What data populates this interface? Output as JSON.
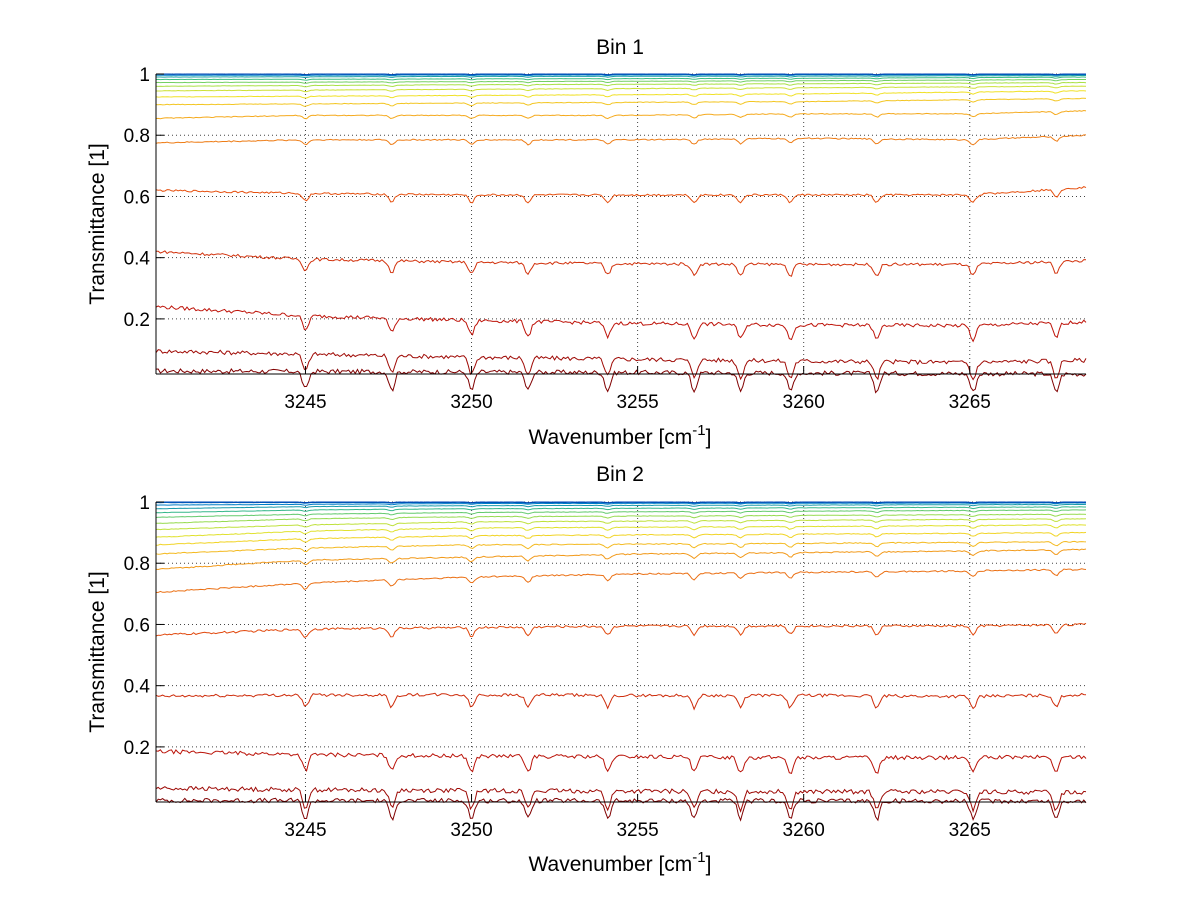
{
  "chart_data": [
    {
      "type": "line",
      "title": "Bin 1",
      "xlabel": "Wavenumber [cm",
      "xlabel_sup": "-1",
      "xlabel_end": "]",
      "ylabel": "Transmittance [1]",
      "xlim": [
        3240.5,
        3268.5
      ],
      "ylim": [
        0.02,
        1.0
      ],
      "xticks": [
        3245,
        3250,
        3255,
        3260,
        3265
      ],
      "yticks": [
        0.2,
        0.4,
        0.6,
        0.8,
        1
      ],
      "xtick_labels": [
        "3245",
        "3250",
        "3255",
        "3260",
        "3265"
      ],
      "ytick_labels": [
        "0.2",
        "0.4",
        "0.6",
        "0.8",
        "1"
      ],
      "grid": true,
      "series": [
        {
          "values": [
            [
              3240.5,
              0.03
            ],
            [
              3268.5,
              0.02
            ]
          ]
        },
        {
          "values": [
            [
              3240.5,
              0.095
            ],
            [
              3245,
              0.085
            ],
            [
              3250,
              0.075
            ],
            [
              3255,
              0.068
            ],
            [
              3260,
              0.062
            ],
            [
              3265,
              0.058
            ],
            [
              3268.5,
              0.065
            ]
          ]
        },
        {
          "values": [
            [
              3240.5,
              0.24
            ],
            [
              3245,
              0.21
            ],
            [
              3250,
              0.195
            ],
            [
              3255,
              0.185
            ],
            [
              3260,
              0.18
            ],
            [
              3265,
              0.178
            ],
            [
              3268.5,
              0.19
            ]
          ]
        },
        {
          "values": [
            [
              3240.5,
              0.42
            ],
            [
              3245,
              0.395
            ],
            [
              3250,
              0.385
            ],
            [
              3255,
              0.38
            ],
            [
              3260,
              0.378
            ],
            [
              3265,
              0.378
            ],
            [
              3268.5,
              0.39
            ]
          ]
        },
        {
          "values": [
            [
              3240.5,
              0.62
            ],
            [
              3245,
              0.61
            ],
            [
              3250,
              0.605
            ],
            [
              3255,
              0.605
            ],
            [
              3260,
              0.605
            ],
            [
              3265,
              0.605
            ],
            [
              3268.5,
              0.63
            ]
          ]
        },
        {
          "values": [
            [
              3240.5,
              0.775
            ],
            [
              3245,
              0.785
            ],
            [
              3250,
              0.785
            ],
            [
              3255,
              0.785
            ],
            [
              3260,
              0.79
            ],
            [
              3265,
              0.785
            ],
            [
              3268.5,
              0.8
            ]
          ]
        },
        {
          "values": [
            [
              3240.5,
              0.855
            ],
            [
              3245,
              0.865
            ],
            [
              3250,
              0.865
            ],
            [
              3255,
              0.865
            ],
            [
              3260,
              0.87
            ],
            [
              3265,
              0.87
            ],
            [
              3268.5,
              0.88
            ]
          ]
        },
        {
          "values": [
            [
              3240.5,
              0.9
            ],
            [
              3250,
              0.905
            ],
            [
              3260,
              0.91
            ],
            [
              3268.5,
              0.92
            ]
          ]
        },
        {
          "values": [
            [
              3240.5,
              0.925
            ],
            [
              3250,
              0.93
            ],
            [
              3260,
              0.935
            ],
            [
              3268.5,
              0.945
            ]
          ]
        },
        {
          "values": [
            [
              3240.5,
              0.945
            ],
            [
              3250,
              0.95
            ],
            [
              3260,
              0.955
            ],
            [
              3268.5,
              0.96
            ]
          ]
        },
        {
          "values": [
            [
              3240.5,
              0.96
            ],
            [
              3250,
              0.965
            ],
            [
              3260,
              0.968
            ],
            [
              3268.5,
              0.972
            ]
          ]
        },
        {
          "values": [
            [
              3240.5,
              0.972
            ],
            [
              3250,
              0.975
            ],
            [
              3260,
              0.978
            ],
            [
              3268.5,
              0.982
            ]
          ]
        },
        {
          "values": [
            [
              3240.5,
              0.982
            ],
            [
              3250,
              0.984
            ],
            [
              3260,
              0.986
            ],
            [
              3268.5,
              0.99
            ]
          ]
        },
        {
          "values": [
            [
              3240.5,
              0.99
            ],
            [
              3250,
              0.992
            ],
            [
              3260,
              0.993
            ],
            [
              3268.5,
              0.995
            ]
          ]
        },
        {
          "values": [
            [
              3240.5,
              0.996
            ],
            [
              3268.5,
              0.998
            ]
          ]
        },
        {
          "values": [
            [
              3240.5,
              0.999
            ],
            [
              3268.5,
              0.999
            ]
          ]
        },
        {
          "values": [
            [
              3240.5,
              1.0
            ],
            [
              3268.5,
              1.0
            ]
          ]
        }
      ]
    },
    {
      "type": "line",
      "title": "Bin 2",
      "xlabel": "Wavenumber [cm",
      "xlabel_sup": "-1",
      "xlabel_end": "]",
      "ylabel": "Transmittance [1]",
      "xlim": [
        3240.5,
        3268.5
      ],
      "ylim": [
        0.02,
        1.0
      ],
      "xticks": [
        3245,
        3250,
        3255,
        3260,
        3265
      ],
      "yticks": [
        0.2,
        0.4,
        0.6,
        0.8,
        1
      ],
      "xtick_labels": [
        "3245",
        "3250",
        "3255",
        "3260",
        "3265"
      ],
      "ytick_labels": [
        "0.2",
        "0.4",
        "0.6",
        "0.8",
        "1"
      ],
      "grid": true,
      "series": [
        {
          "values": [
            [
              3240.5,
              0.025
            ],
            [
              3268.5,
              0.023
            ]
          ]
        },
        {
          "values": [
            [
              3240.5,
              0.065
            ],
            [
              3245,
              0.06
            ],
            [
              3255,
              0.055
            ],
            [
              3268.5,
              0.052
            ]
          ]
        },
        {
          "values": [
            [
              3240.5,
              0.185
            ],
            [
              3245,
              0.175
            ],
            [
              3250,
              0.17
            ],
            [
              3255,
              0.168
            ],
            [
              3260,
              0.165
            ],
            [
              3265,
              0.165
            ],
            [
              3268.5,
              0.168
            ]
          ]
        },
        {
          "values": [
            [
              3240.5,
              0.365
            ],
            [
              3245,
              0.37
            ],
            [
              3250,
              0.37
            ],
            [
              3255,
              0.368
            ],
            [
              3260,
              0.368
            ],
            [
              3265,
              0.365
            ],
            [
              3268.5,
              0.37
            ]
          ]
        },
        {
          "values": [
            [
              3240.5,
              0.565
            ],
            [
              3245,
              0.585
            ],
            [
              3250,
              0.59
            ],
            [
              3255,
              0.595
            ],
            [
              3260,
              0.595
            ],
            [
              3265,
              0.595
            ],
            [
              3268.5,
              0.6
            ]
          ]
        },
        {
          "values": [
            [
              3240.5,
              0.705
            ],
            [
              3245,
              0.735
            ],
            [
              3250,
              0.755
            ],
            [
              3255,
              0.765
            ],
            [
              3260,
              0.77
            ],
            [
              3265,
              0.775
            ],
            [
              3268.5,
              0.78
            ]
          ]
        },
        {
          "values": [
            [
              3240.5,
              0.78
            ],
            [
              3245,
              0.81
            ],
            [
              3250,
              0.82
            ],
            [
              3255,
              0.83
            ],
            [
              3260,
              0.835
            ],
            [
              3265,
              0.84
            ],
            [
              3268.5,
              0.845
            ]
          ]
        },
        {
          "values": [
            [
              3240.5,
              0.83
            ],
            [
              3245,
              0.85
            ],
            [
              3250,
              0.86
            ],
            [
              3260,
              0.865
            ],
            [
              3268.5,
              0.87
            ]
          ]
        },
        {
          "values": [
            [
              3240.5,
              0.86
            ],
            [
              3245,
              0.88
            ],
            [
              3250,
              0.89
            ],
            [
              3260,
              0.895
            ],
            [
              3268.5,
              0.9
            ]
          ]
        },
        {
          "values": [
            [
              3240.5,
              0.885
            ],
            [
              3245,
              0.905
            ],
            [
              3250,
              0.915
            ],
            [
              3260,
              0.92
            ],
            [
              3268.5,
              0.925
            ]
          ]
        },
        {
          "values": [
            [
              3240.5,
              0.91
            ],
            [
              3245,
              0.925
            ],
            [
              3250,
              0.935
            ],
            [
              3260,
              0.94
            ],
            [
              3268.5,
              0.945
            ]
          ]
        },
        {
          "values": [
            [
              3240.5,
              0.93
            ],
            [
              3245,
              0.945
            ],
            [
              3250,
              0.952
            ],
            [
              3260,
              0.956
            ],
            [
              3268.5,
              0.96
            ]
          ]
        },
        {
          "values": [
            [
              3240.5,
              0.95
            ],
            [
              3245,
              0.96
            ],
            [
              3250,
              0.966
            ],
            [
              3260,
              0.97
            ],
            [
              3268.5,
              0.974
            ]
          ]
        },
        {
          "values": [
            [
              3240.5,
              0.965
            ],
            [
              3245,
              0.974
            ],
            [
              3250,
              0.978
            ],
            [
              3260,
              0.981
            ],
            [
              3268.5,
              0.984
            ]
          ]
        },
        {
          "values": [
            [
              3240.5,
              0.978
            ],
            [
              3245,
              0.985
            ],
            [
              3250,
              0.988
            ],
            [
              3260,
              0.99
            ],
            [
              3268.5,
              0.992
            ]
          ]
        },
        {
          "values": [
            [
              3240.5,
              0.99
            ],
            [
              3250,
              0.995
            ],
            [
              3268.5,
              0.997
            ]
          ]
        },
        {
          "values": [
            [
              3240.5,
              0.998
            ],
            [
              3268.5,
              0.999
            ]
          ]
        },
        {
          "values": [
            [
              3240.5,
              1.0
            ],
            [
              3268.5,
              1.0
            ]
          ]
        }
      ]
    }
  ]
}
